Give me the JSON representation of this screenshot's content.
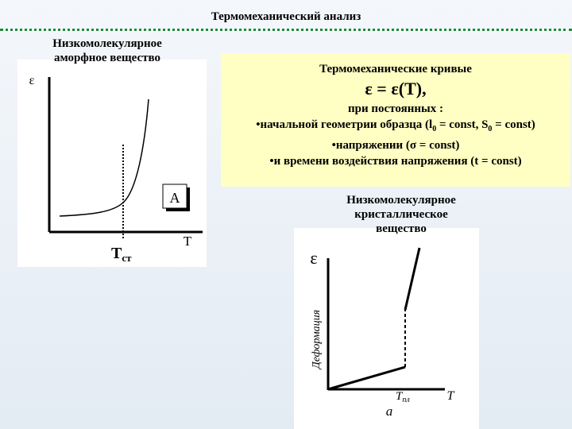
{
  "title": "Термомеханический анализ",
  "left_panel": {
    "label": [
      "Низкомолекулярное",
      "аморфное вещество"
    ],
    "graph": {
      "y_label": "ε",
      "box_label": "A",
      "x_label": "T",
      "tick_label": "T",
      "tick_sub": "ст"
    }
  },
  "info_box": {
    "heading": "Термомеханические кривые",
    "formula": "ε = ε(T),",
    "condition": "при постоянных :",
    "bullets": [
      [
        "начальной геометрии образца (l",
        "0",
        " = const, S",
        "0",
        " = const)"
      ],
      [
        "напряжении (σ = const)"
      ],
      [
        "и времени воздействия напряжения (t = const)"
      ]
    ]
  },
  "right_panel": {
    "label": [
      "Низкомолекулярное",
      "кристаллическое",
      "вещество"
    ],
    "graph": {
      "y_symbol": "ε",
      "y_label": "Деформация",
      "tick_label": "T",
      "tick_sub": "пл",
      "x_label": "T",
      "caption": "а"
    }
  }
}
